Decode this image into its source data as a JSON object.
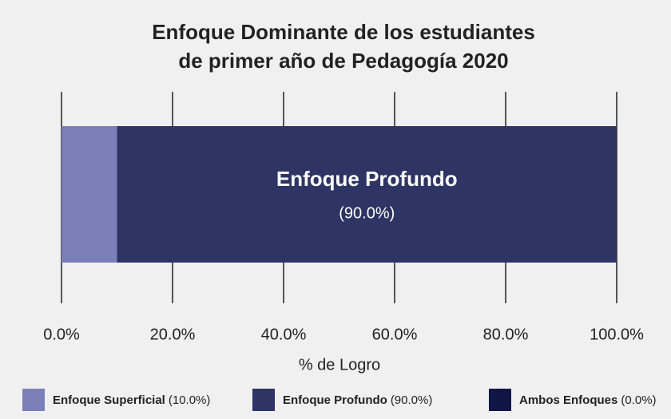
{
  "chart_data": {
    "type": "stacked_barh",
    "title": [
      "Enfoque Dominante de los estudiantes",
      "de primer año de Pedagogía 2020"
    ],
    "xlabel": "% de Logro",
    "xlim": [
      0,
      100
    ],
    "xticks": [
      {
        "value": 0,
        "label": "0.0%"
      },
      {
        "value": 20,
        "label": "20.0%"
      },
      {
        "value": 40,
        "label": "40.0%"
      },
      {
        "value": 60,
        "label": "60.0%"
      },
      {
        "value": 80,
        "label": "80.0%"
      },
      {
        "value": 100,
        "label": "100.0%"
      }
    ],
    "grid": true,
    "legend": "bottom",
    "series": [
      {
        "name": "Enfoque Superficial",
        "color": "#7b7fb8",
        "values": [
          10
        ],
        "value_labels": [
          "(10.0%)"
        ]
      },
      {
        "name": "Enfoque Profundo",
        "color": "#2e3463",
        "values": [
          90
        ],
        "value_labels": [
          "(90.0%)"
        ]
      },
      {
        "name": "Ambos Enfoques",
        "color": "#0f1545",
        "values": [
          0
        ],
        "value_labels": [
          "(0.0%)"
        ]
      }
    ]
  }
}
